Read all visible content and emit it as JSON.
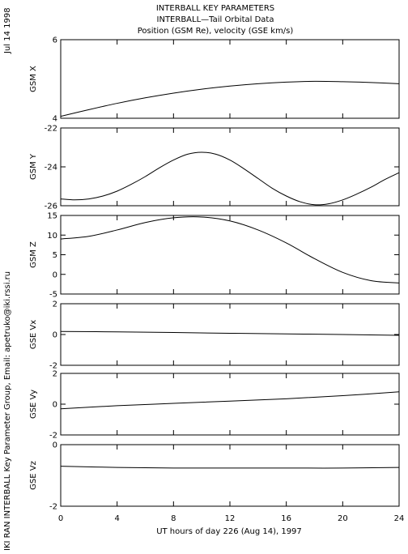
{
  "header": {
    "line1": "INTERBALL KEY PARAMETERS",
    "line2": "INTERBALL—Tail Orbital Data",
    "line3": "Position (GSM Re), velocity (GSE km/s)"
  },
  "side_left_top": "Jul 14 1998",
  "side_left_bottom": "IKI RAN INTERBALL Key Parameter Group, Email: apetruko@iki.rssi.ru",
  "colors": {
    "line": "#000000",
    "background": "#ffffff"
  },
  "chart_data": {
    "type": "line",
    "shared_x": {
      "label": "UT hours of day 226 (Aug 14), 1997",
      "range": [
        0,
        24
      ],
      "ticks": [
        0,
        4,
        8,
        12,
        16,
        20,
        24
      ],
      "tick_labels": [
        "0",
        "4",
        "8",
        "12",
        "16",
        "20",
        "24"
      ]
    },
    "panels": [
      {
        "ylabel": "GSM X",
        "ylim": [
          4,
          6
        ],
        "ticks": [
          4,
          6
        ],
        "tick_labels": [
          "4",
          "6"
        ],
        "x": [
          0,
          2,
          4,
          6,
          8,
          10,
          12,
          14,
          16,
          18,
          20,
          22,
          24
        ],
        "y": [
          4.05,
          4.22,
          4.38,
          4.52,
          4.64,
          4.74,
          4.82,
          4.88,
          4.92,
          4.94,
          4.93,
          4.91,
          4.88
        ]
      },
      {
        "ylabel": "GSM Y",
        "ylim": [
          -26,
          -22
        ],
        "ticks": [
          -26,
          -24,
          -22
        ],
        "tick_labels": [
          "-26",
          "-24",
          "-22"
        ],
        "x": [
          0,
          1,
          2,
          3,
          4,
          5,
          6,
          7,
          8,
          9,
          10,
          11,
          12,
          13,
          14,
          15,
          16,
          17,
          18,
          19,
          20,
          21,
          22,
          23,
          24
        ],
        "y": [
          -25.65,
          -25.7,
          -25.65,
          -25.5,
          -25.25,
          -24.9,
          -24.5,
          -24.05,
          -23.65,
          -23.35,
          -23.25,
          -23.35,
          -23.65,
          -24.1,
          -24.6,
          -25.1,
          -25.5,
          -25.8,
          -25.95,
          -25.9,
          -25.7,
          -25.4,
          -25.05,
          -24.65,
          -24.3
        ]
      },
      {
        "ylabel": "GSM Z",
        "ylim": [
          -5,
          15
        ],
        "ticks": [
          -5,
          0,
          5,
          10,
          15
        ],
        "tick_labels": [
          "-5",
          "0",
          "5",
          "10",
          "15"
        ],
        "x": [
          0,
          2,
          4,
          6,
          8,
          10,
          12,
          14,
          16,
          18,
          20,
          22,
          24
        ],
        "y": [
          9.0,
          9.7,
          11.3,
          13.2,
          14.4,
          14.6,
          13.6,
          11.3,
          8.0,
          4.0,
          0.5,
          -1.6,
          -2.2
        ]
      },
      {
        "ylabel": "GSE Vx",
        "ylim": [
          -2,
          2
        ],
        "ticks": [
          -2,
          0,
          2
        ],
        "tick_labels": [
          "-2",
          "0",
          "2"
        ],
        "x": [
          0,
          4,
          8,
          12,
          16,
          20,
          24
        ],
        "y": [
          0.2,
          0.17,
          0.13,
          0.08,
          0.04,
          0.0,
          -0.05
        ]
      },
      {
        "ylabel": "GSE Vy",
        "ylim": [
          -2,
          2
        ],
        "ticks": [
          -2,
          0,
          2
        ],
        "tick_labels": [
          "-2",
          "0",
          "2"
        ],
        "x": [
          0,
          4,
          8,
          12,
          16,
          20,
          24
        ],
        "y": [
          -0.3,
          -0.1,
          0.05,
          0.2,
          0.35,
          0.55,
          0.8
        ]
      },
      {
        "ylabel": "GSE Vz",
        "ylim": [
          -2,
          0
        ],
        "ticks": [
          -2,
          0
        ],
        "tick_labels": [
          "-2",
          "0"
        ],
        "x": [
          0,
          4,
          8,
          12,
          16,
          20,
          24
        ],
        "y": [
          -0.7,
          -0.74,
          -0.76,
          -0.76,
          -0.76,
          -0.76,
          -0.74
        ]
      }
    ]
  }
}
